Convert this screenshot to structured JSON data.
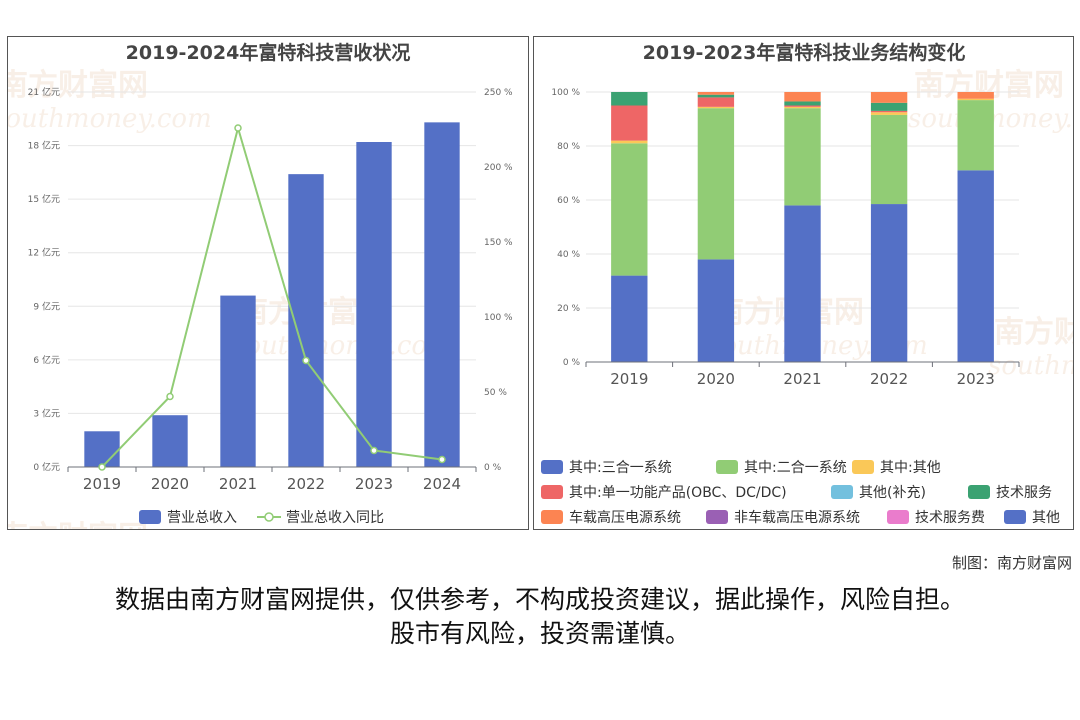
{
  "watermark": {
    "cn": "南方财富网",
    "en": "southmoney.com"
  },
  "charts": [
    {
      "type": "bar+line",
      "title": "2019-2024年富特科技营收状况",
      "categories": [
        "2019",
        "2020",
        "2021",
        "2022",
        "2023",
        "2024"
      ],
      "left_axis": {
        "range": [
          0,
          21
        ],
        "ticks": [
          0,
          3,
          6,
          9,
          12,
          15,
          18,
          21
        ],
        "tick_labels": [
          "0 亿元",
          "3 亿元",
          "6 亿元",
          "9 亿元",
          "12 亿元",
          "15 亿元",
          "18 亿元",
          "21 亿元"
        ]
      },
      "right_axis": {
        "range": [
          0,
          250
        ],
        "ticks": [
          0,
          50,
          100,
          150,
          200,
          250
        ],
        "tick_labels": [
          "0 %",
          "50 %",
          "100 %",
          "150 %",
          "200 %",
          "250 %"
        ]
      },
      "series": [
        {
          "name": "营业总收入",
          "kind": "bar",
          "axis": "left",
          "color": "#5470c6",
          "values": [
            2.0,
            2.9,
            9.6,
            16.4,
            18.2,
            19.3
          ]
        },
        {
          "name": "营业总收入同比",
          "kind": "line",
          "axis": "right",
          "color": "#91cc75",
          "values": [
            0,
            47,
            226,
            71,
            11,
            5
          ]
        }
      ],
      "legend_position": "bottom"
    },
    {
      "type": "stacked-bar",
      "title": "2019-2023年富特科技业务结构变化",
      "categories": [
        "2019",
        "2020",
        "2021",
        "2022",
        "2023"
      ],
      "y_axis": {
        "range": [
          0,
          100
        ],
        "ticks": [
          0,
          20,
          40,
          60,
          80,
          100
        ],
        "tick_labels": [
          "0 %",
          "20 %",
          "40 %",
          "60 %",
          "80 %",
          "100 %"
        ]
      },
      "series": [
        {
          "name": "其中:三合一系统",
          "color": "#5470c6",
          "values": [
            32,
            38,
            58,
            58.5,
            71
          ]
        },
        {
          "name": "其中:二合一系统",
          "color": "#91cc75",
          "values": [
            49,
            56,
            36,
            33,
            26
          ]
        },
        {
          "name": "其中:其他",
          "color": "#fac858",
          "values": [
            1,
            0.5,
            0.5,
            1,
            0.5
          ]
        },
        {
          "name": "其中:单一功能产品(OBC、DC/DC)",
          "color": "#ee6666",
          "values": [
            13,
            3.5,
            0.5,
            0.5,
            0
          ]
        },
        {
          "name": "其他(补充)",
          "color": "#73c0de",
          "values": [
            0,
            0,
            0,
            0,
            0
          ]
        },
        {
          "name": "技术服务",
          "color": "#3ba272",
          "values": [
            5,
            1,
            1.5,
            3,
            0
          ]
        },
        {
          "name": "车载高压电源系统",
          "color": "#fc8452",
          "values": [
            0,
            1,
            3.5,
            4,
            2.5
          ]
        },
        {
          "name": "非车载高压电源系统",
          "color": "#9a60b4",
          "values": [
            0,
            0,
            0,
            0,
            0
          ]
        },
        {
          "name": "技术服务费",
          "color": "#ea7ccc",
          "values": [
            0,
            0,
            0,
            0,
            0
          ]
        },
        {
          "name": "其他",
          "color": "#5470c6",
          "values": [
            0,
            0,
            0,
            0,
            0
          ]
        }
      ],
      "legend_position": "bottom"
    }
  ],
  "credit": "制图：南方财富网",
  "disclaimer_line1": "数据由南方财富网提供，仅供参考，不构成投资建议，据此操作，风险自担。",
  "disclaimer_line2": "股市有风险，投资需谨慎。"
}
